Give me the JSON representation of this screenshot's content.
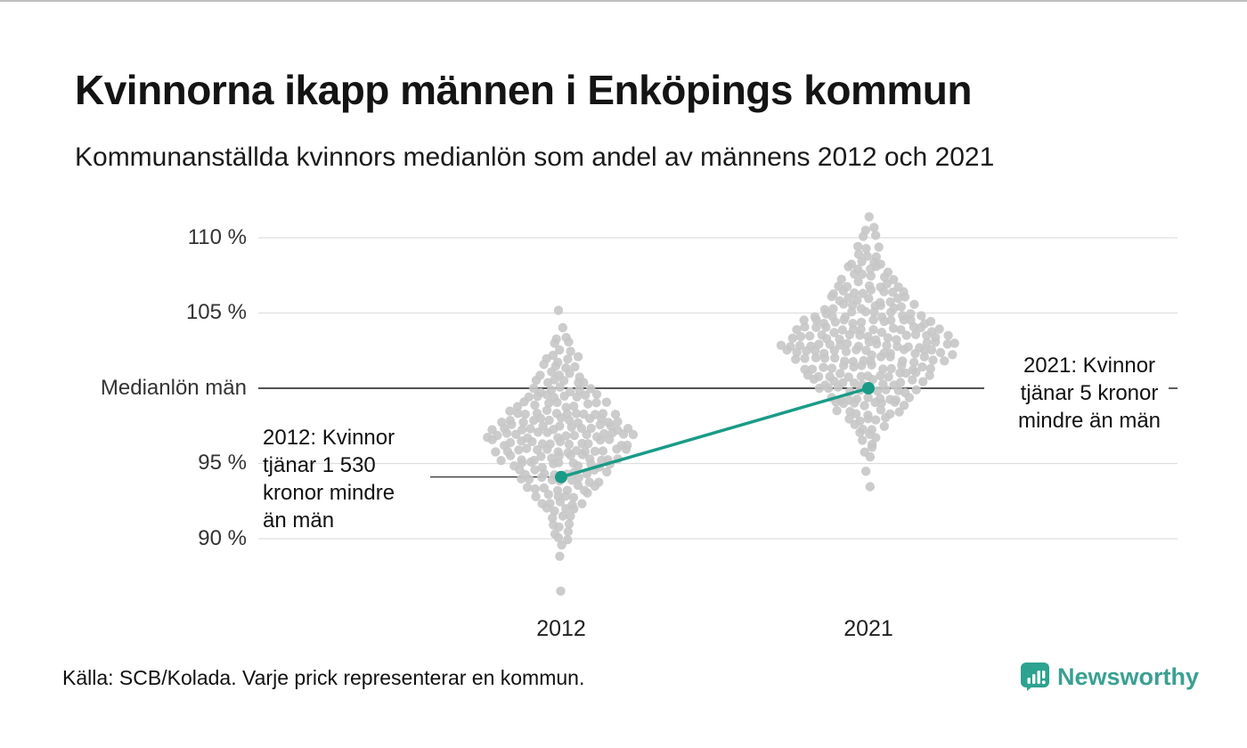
{
  "header": {
    "title": "Kvinnorna ikapp männen i Enköpings kommun",
    "subtitle": "Kommunanställda kvinnors medianlön som andel av männens 2012 och 2021"
  },
  "chart_data": {
    "type": "beeswarm",
    "title": "Kvinnorna ikapp männen i Enköpings kommun",
    "subtitle": "Kommunanställda kvinnors medianlön som andel av männens 2012 och 2021",
    "unit": "% av männens medianlön",
    "categories": [
      "2012",
      "2021"
    ],
    "y_axis": {
      "range": [
        86,
        112.5
      ],
      "grid": true,
      "ticks": [
        {
          "value": 110,
          "label": "110 %"
        },
        {
          "value": 105,
          "label": "105 %"
        },
        {
          "value": 100,
          "label": "Medianlön män"
        },
        {
          "value": 95,
          "label": "95 %"
        },
        {
          "value": 90,
          "label": "90 %"
        }
      ]
    },
    "dot_color": "#c6c6c6",
    "highlight": {
      "name": "Enköpings kommun",
      "color": "#1a9b87",
      "series": [
        {
          "category": "2012",
          "value": 94.1
        },
        {
          "category": "2021",
          "value": 100
        }
      ]
    },
    "annotations": [
      {
        "category": "2012",
        "text": "2012: Kvinnor tjänar 1 530 kronor mindre än män",
        "lines": [
          "2012: Kvinnor",
          "tjänar 1 530",
          "kronor mindre",
          "än män"
        ]
      },
      {
        "category": "2021",
        "text": "2021: Kvinnor tjänar 5 kronor mindre än män",
        "lines": [
          "2021: Kvinnor",
          "tjänar 5 kronor",
          "mindre än män"
        ]
      }
    ],
    "swarms": {
      "2012": {
        "bin_size": 0.5,
        "bins": [
          [
            105.2,
            1
          ],
          [
            104.0,
            1
          ],
          [
            103.4,
            2
          ],
          [
            102.9,
            2
          ],
          [
            102.4,
            3
          ],
          [
            101.9,
            4
          ],
          [
            101.4,
            4
          ],
          [
            100.9,
            5
          ],
          [
            100.4,
            6
          ],
          [
            99.9,
            7
          ],
          [
            99.4,
            8
          ],
          [
            98.9,
            10
          ],
          [
            98.4,
            12
          ],
          [
            97.9,
            13
          ],
          [
            97.4,
            15
          ],
          [
            96.9,
            16
          ],
          [
            96.4,
            15
          ],
          [
            95.9,
            14
          ],
          [
            95.4,
            13
          ],
          [
            94.9,
            11
          ],
          [
            94.4,
            10
          ],
          [
            93.9,
            9
          ],
          [
            93.4,
            8
          ],
          [
            92.9,
            6
          ],
          [
            92.4,
            5
          ],
          [
            91.9,
            4
          ],
          [
            91.4,
            3
          ],
          [
            90.9,
            3
          ],
          [
            90.4,
            2
          ],
          [
            89.9,
            2
          ],
          [
            89.4,
            1
          ],
          [
            88.9,
            1
          ],
          [
            86.7,
            1
          ]
        ]
      },
      "2021": {
        "bin_size": 0.5,
        "bins": [
          [
            111.4,
            1
          ],
          [
            110.6,
            2
          ],
          [
            110.0,
            2
          ],
          [
            109.4,
            3
          ],
          [
            108.9,
            3
          ],
          [
            108.4,
            4
          ],
          [
            107.9,
            5
          ],
          [
            107.4,
            6
          ],
          [
            106.9,
            7
          ],
          [
            106.4,
            8
          ],
          [
            105.9,
            9
          ],
          [
            105.4,
            10
          ],
          [
            104.9,
            12
          ],
          [
            104.4,
            14
          ],
          [
            103.9,
            16
          ],
          [
            103.4,
            17
          ],
          [
            102.9,
            19
          ],
          [
            102.4,
            18
          ],
          [
            101.9,
            16
          ],
          [
            101.4,
            14
          ],
          [
            100.9,
            13
          ],
          [
            100.4,
            12
          ],
          [
            99.9,
            11
          ],
          [
            99.4,
            9
          ],
          [
            98.9,
            8
          ],
          [
            98.4,
            7
          ],
          [
            97.9,
            5
          ],
          [
            97.4,
            4
          ],
          [
            96.9,
            3
          ],
          [
            96.4,
            2
          ],
          [
            95.9,
            2
          ],
          [
            95.4,
            1
          ],
          [
            94.4,
            1
          ],
          [
            93.4,
            1
          ]
        ]
      }
    }
  },
  "footer": {
    "source": "Källa: SCB/Kolada. Varje prick representerar en kommun."
  },
  "branding": {
    "name": "Newsworthy",
    "color": "#3aa092"
  }
}
